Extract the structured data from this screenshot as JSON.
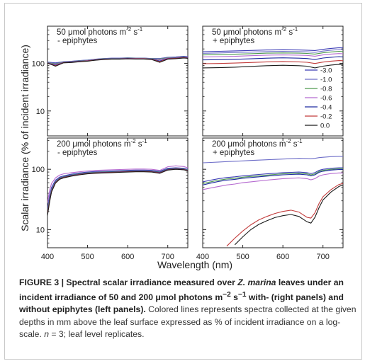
{
  "chart_data": {
    "type": "line",
    "ylabel": "Scalar irradiance (% of incident irradiance)",
    "xlabel": "Wavelength (nm)",
    "xlim": [
      400,
      750
    ],
    "x_ticks": [
      "400",
      "500",
      "600",
      "700"
    ],
    "y_scale": "log",
    "y_ticks": [
      "10",
      "100"
    ],
    "legend_placement": "right",
    "legend_series": [
      "-3.0",
      "-1.0",
      "-0.8",
      "-0.6",
      "-0.4",
      "-0.2",
      "0.0"
    ],
    "series_colors": [
      "#3b3bb5",
      "#6e6ec8",
      "#4f9a4f",
      "#b56ad0",
      "#1f2aa0",
      "#c23b3b",
      "#1a1a1a"
    ],
    "panels": [
      {
        "title_prefix": "50 μmol photons m",
        "title_exp1": "-2",
        "title_mid": " s",
        "title_exp2": "-1",
        "subtitle": "- epiphytes",
        "subtitle_color": "#222222",
        "ylim": [
          3,
          600
        ],
        "show_ytick_labels": true,
        "show_xtick_labels": false,
        "x": [
          400,
          410,
          420,
          440,
          460,
          480,
          500,
          520,
          540,
          560,
          580,
          600,
          620,
          640,
          660,
          680,
          700,
          720,
          740,
          750
        ],
        "series": [
          {
            "name": "-3.0",
            "values": [
              106,
              104,
              102,
              108,
              110,
              114,
              117,
              122,
              126,
              128,
              128,
              130,
              129,
              129,
              126,
              126,
              134,
              136,
              140,
              138
            ]
          },
          {
            "name": "-1.0",
            "values": [
              105,
              102,
              99,
              107,
              109,
              113,
              116,
              121,
              125,
              127,
              127,
              129,
              128,
              128,
              125,
              125,
              132,
              134,
              138,
              136
            ]
          },
          {
            "name": "-0.8",
            "values": [
              104,
              100,
              97,
              106,
              108,
              112,
              115,
              120,
              124,
              126,
              126,
              128,
              127,
              127,
              124,
              122,
              130,
              132,
              136,
              134
            ]
          },
          {
            "name": "-0.6",
            "values": [
              103,
              98,
              94,
              105,
              107,
              111,
              114,
              119,
              123,
              125,
              125,
              127,
              126,
              126,
              123,
              118,
              128,
              130,
              134,
              133
            ]
          },
          {
            "name": "-0.4",
            "values": [
              102,
              96,
              91,
              104,
              106,
              110,
              113,
              118,
              122,
              124,
              124,
              126,
              125,
              125,
              122,
              112,
              126,
              129,
              133,
              131
            ]
          },
          {
            "name": "-0.2",
            "values": [
              101,
              95,
              89,
              103,
              105,
              109,
              112,
              117,
              121,
              123,
              123,
              125,
              124,
              124,
              121,
              108,
              124,
              127,
              131,
              129
            ]
          },
          {
            "name": "0.0",
            "values": [
              100,
              94,
              87,
              102,
              104,
              108,
              111,
              116,
              120,
              122,
              122,
              124,
              123,
              123,
              120,
              105,
              122,
              125,
              129,
              127
            ]
          }
        ]
      },
      {
        "title_prefix": "50 μmol photons m",
        "title_exp1": "-2",
        "title_mid": " s",
        "title_exp2": "-1",
        "subtitle": "+ epiphytes",
        "subtitle_color": "#d03a3a",
        "ylim": [
          3,
          600
        ],
        "show_ytick_labels": false,
        "show_xtick_labels": false,
        "x": [
          400,
          440,
          480,
          520,
          560,
          600,
          640,
          660,
          680,
          700,
          720,
          740,
          750
        ],
        "series": [
          {
            "name": "-3.0",
            "values": [
              175,
              178,
              182,
              186,
              190,
              192,
              190,
              188,
              185,
              196,
              205,
              212,
              210
            ]
          },
          {
            "name": "-1.0",
            "values": [
              162,
              165,
              168,
              172,
              176,
              178,
              176,
              174,
              170,
              180,
              188,
              194,
              192
            ]
          },
          {
            "name": "-0.8",
            "values": [
              150,
              152,
              155,
              159,
              163,
              165,
              163,
              161,
              156,
              166,
              173,
              178,
              176
            ]
          },
          {
            "name": "-0.6",
            "values": [
              136,
              138,
              140,
              144,
              148,
              150,
              148,
              146,
              141,
              150,
              156,
              160,
              158
            ]
          },
          {
            "name": "-0.4",
            "values": [
              118,
              119,
              121,
              124,
              128,
              130,
              128,
              126,
              120,
              129,
              134,
              138,
              136
            ]
          },
          {
            "name": "-0.2",
            "values": [
              98,
              99,
              101,
              104,
              107,
              109,
              107,
              105,
              99,
              106,
              111,
              114,
              113
            ]
          },
          {
            "name": "0.0",
            "values": [
              80,
              81,
              83,
              86,
              89,
              91,
              89,
              87,
              80,
              87,
              92,
              95,
              94
            ]
          }
        ]
      },
      {
        "title_prefix": "200 μmol photons m",
        "title_exp1": "-2",
        "title_mid": " s",
        "title_exp2": "-1",
        "subtitle": "- epiphytes",
        "subtitle_color": "#222222",
        "ylim": [
          5,
          330
        ],
        "show_ytick_labels": true,
        "show_xtick_labels": true,
        "x": [
          400,
          405,
          410,
          420,
          430,
          440,
          460,
          480,
          500,
          520,
          540,
          560,
          580,
          600,
          620,
          640,
          660,
          680,
          700,
          720,
          740,
          750
        ],
        "series": [
          {
            "name": "-3.0",
            "values": [
              22,
              36,
              50,
              66,
              74,
              78,
              83,
              87,
              90,
              92,
              93,
              94,
              95,
              96,
              97,
              97,
              96,
              93,
              104,
              106,
              104,
              100
            ]
          },
          {
            "name": "-1.0",
            "values": [
              20,
              33,
              47,
              63,
              72,
              76,
              81,
              85,
              88,
              90,
              91,
              92,
              93,
              94,
              95,
              95,
              94,
              91,
              102,
              104,
              102,
              98
            ]
          },
          {
            "name": "-0.8",
            "values": [
              19,
              31,
              45,
              62,
              71,
              75,
              80,
              84,
              87,
              89,
              90,
              91,
              92,
              93,
              94,
              94,
              93,
              90,
              101,
              103,
              101,
              97
            ]
          },
          {
            "name": "-0.6",
            "values": [
              28,
              44,
              58,
              72,
              80,
              84,
              88,
              91,
              94,
              96,
              97,
              98,
              99,
              100,
              101,
              101,
              100,
              96,
              110,
              114,
              111,
              106
            ]
          },
          {
            "name": "-0.4",
            "values": [
              18,
              30,
              44,
              61,
              70,
              74,
              79,
              83,
              86,
              88,
              89,
              90,
              91,
              92,
              93,
              93,
              92,
              89,
              100,
              102,
              100,
              96
            ]
          },
          {
            "name": "-0.2",
            "values": [
              18,
              29,
              43,
              60,
              69,
              73,
              78,
              82,
              85,
              87,
              88,
              89,
              90,
              91,
              92,
              92,
              91,
              87,
              98,
              101,
              99,
              95
            ]
          },
          {
            "name": "0.0",
            "values": [
              17,
              28,
              42,
              59,
              68,
              72,
              77,
              81,
              84,
              86,
              87,
              88,
              89,
              90,
              91,
              91,
              90,
              86,
              97,
              100,
              98,
              94
            ]
          }
        ]
      },
      {
        "title_prefix": "200 μmol photons m",
        "title_exp1": "-2",
        "title_mid": " s",
        "title_exp2": "-1",
        "subtitle": "+ epiphytes",
        "subtitle_color": "#d03a3a",
        "ylim": [
          5,
          330
        ],
        "show_ytick_labels": false,
        "show_xtick_labels": true,
        "x": [
          400,
          420,
          440,
          460,
          480,
          500,
          520,
          540,
          560,
          580,
          600,
          620,
          640,
          660,
          670,
          680,
          690,
          700,
          720,
          740,
          750
        ],
        "series": [
          {
            "name": "-3.0",
            "values": [
              62,
              66,
              70,
              73,
              75,
              78,
              80,
              82,
              84,
              86,
              88,
              89,
              90,
              88,
              85,
              88,
              96,
              100,
              104,
              106,
              106
            ]
          },
          {
            "name": "-1.0",
            "values": [
              128,
              130,
              132,
              134,
              136,
              138,
              140,
              142,
              144,
              146,
              148,
              150,
              152,
              151,
              150,
              152,
              156,
              158,
              162,
              164,
              164
            ]
          },
          {
            "name": "-0.8",
            "values": [
              58,
              62,
              66,
              69,
              71,
              74,
              76,
              78,
              80,
              82,
              84,
              85,
              86,
              84,
              81,
              84,
              92,
              96,
              100,
              102,
              102
            ]
          },
          {
            "name": "-0.6",
            "values": [
              46,
              49,
              52,
              55,
              57,
              60,
              62,
              64,
              66,
              68,
              70,
              71,
              72,
              70,
              67,
              70,
              77,
              81,
              85,
              87,
              87
            ]
          },
          {
            "name": "-0.4",
            "values": [
              55,
              59,
              63,
              66,
              68,
              71,
              73,
              75,
              77,
              79,
              81,
              82,
              83,
              81,
              78,
              81,
              89,
              93,
              97,
              99,
              99
            ]
          },
          {
            "name": "-0.2",
            "values": [
              null,
              null,
              null,
              5.3,
              7.2,
              9.5,
              12,
              14.5,
              16.5,
              18.5,
              20,
              21,
              19.5,
              16,
              15.5,
              19,
              27,
              35,
              46,
              56,
              58
            ]
          },
          {
            "name": "0.0",
            "values": [
              null,
              null,
              null,
              null,
              5.6,
              7.6,
              10,
              12.2,
              14,
              15.8,
              17,
              17.8,
              16.5,
              13.5,
              12.8,
              16,
              23,
              31,
              42,
              52,
              55
            ]
          }
        ]
      }
    ]
  },
  "caption": {
    "bold_lead": "FIGURE 3 | Spectral scalar irradiance measured over ",
    "bold_species": "Z. marina",
    "bold_text1": " leaves under an incident irradiance of 50 and 200 μmol photons m",
    "bold_exp1": "−2",
    "bold_text2": " s",
    "bold_exp2": "−1",
    "bold_text3": " with- (right panels) and without epiphytes (left panels).",
    "body_text1": " Colored lines represents spectra collected at the given depths in mm above the leaf surface expressed as % of incident irradiance on a log-scale. ",
    "body_n": "n",
    "body_text2": " = 3; leaf level replicates."
  }
}
